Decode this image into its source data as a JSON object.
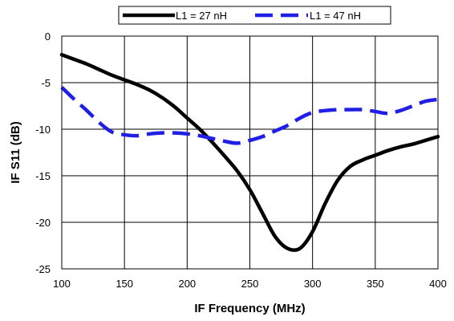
{
  "chart_data": {
    "type": "line",
    "xlabel": "IF Frequency (MHz)",
    "ylabel": "IF S11 (dB)",
    "xlim": [
      100,
      400
    ],
    "ylim": [
      -25,
      0
    ],
    "xticks": [
      "100",
      "150",
      "200",
      "250",
      "300",
      "350",
      "400"
    ],
    "yticks": [
      "0",
      "-5",
      "-10",
      "-15",
      "-20",
      "-25"
    ],
    "grid": true,
    "legend_position": "top",
    "series": [
      {
        "name": "L1 = 27 nH",
        "color": "#000000",
        "style": "solid",
        "x": [
          100,
          110,
          120,
          130,
          140,
          150,
          160,
          170,
          180,
          190,
          200,
          210,
          220,
          230,
          240,
          250,
          260,
          270,
          280,
          290,
          300,
          310,
          320,
          330,
          340,
          350,
          360,
          370,
          380,
          390,
          400
        ],
        "y": [
          -2.0,
          -2.5,
          -3.0,
          -3.6,
          -4.2,
          -4.7,
          -5.2,
          -5.8,
          -6.6,
          -7.6,
          -8.8,
          -10.0,
          -11.4,
          -12.9,
          -14.5,
          -16.5,
          -19.0,
          -21.5,
          -22.8,
          -22.8,
          -21.0,
          -18.0,
          -15.5,
          -14.0,
          -13.3,
          -12.8,
          -12.3,
          -11.9,
          -11.6,
          -11.2,
          -10.8
        ]
      },
      {
        "name": "L1 = 47 nH",
        "color": "#1f1fe6",
        "style": "dashed",
        "x": [
          100,
          110,
          120,
          130,
          140,
          150,
          160,
          170,
          180,
          190,
          200,
          210,
          220,
          230,
          240,
          250,
          260,
          270,
          280,
          290,
          300,
          310,
          320,
          330,
          340,
          350,
          360,
          370,
          380,
          390,
          400
        ],
        "y": [
          -5.5,
          -6.8,
          -8.0,
          -9.3,
          -10.3,
          -10.6,
          -10.7,
          -10.5,
          -10.4,
          -10.4,
          -10.5,
          -10.7,
          -11.0,
          -11.3,
          -11.5,
          -11.2,
          -10.8,
          -10.2,
          -9.6,
          -8.8,
          -8.2,
          -8.0,
          -7.9,
          -7.9,
          -7.9,
          -8.1,
          -8.3,
          -8.0,
          -7.5,
          -7.0,
          -6.8
        ]
      }
    ]
  }
}
